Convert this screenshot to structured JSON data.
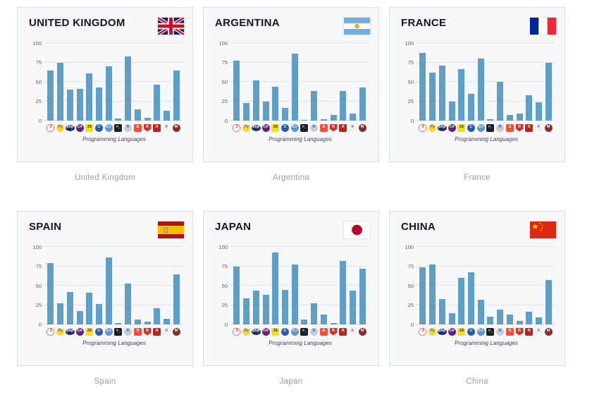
{
  "colors": {
    "bar": "#5f9ec6",
    "panel_background": "#f7f8f9",
    "panel_border": "#d9dbde",
    "gridline": "#e1e2e4",
    "title_text": "#15181c",
    "caption_text": "#9aa0a6"
  },
  "languages": [
    {
      "id": "java",
      "label": "J",
      "bg": "#ffffff",
      "fg": "#d9222a",
      "shape": "round",
      "border": "#d9222a"
    },
    {
      "id": "python",
      "label": "Py",
      "bg": "#ffd43b",
      "fg": "#306998",
      "shape": "round"
    },
    {
      "id": "php",
      "label": "php",
      "bg": "#232c69",
      "fg": "#ffffff",
      "shape": "oval"
    },
    {
      "id": "csharp",
      "label": "C#",
      "bg": "#68217a",
      "fg": "#ffffff",
      "shape": "round"
    },
    {
      "id": "javascript",
      "label": "JS",
      "bg": "#f7df1e",
      "fg": "#222222",
      "shape": "square"
    },
    {
      "id": "c",
      "label": "C",
      "bg": "#2a5aa8",
      "fg": "#ffffff",
      "shape": "round"
    },
    {
      "id": "cpp",
      "label": "C+",
      "bg": "#6295cb",
      "fg": "#ffffff",
      "shape": "round"
    },
    {
      "id": "shell",
      "label": ">_",
      "bg": "#1d1f21",
      "fg": "#ffffff",
      "shape": "square"
    },
    {
      "id": "r",
      "label": "R",
      "bg": "#c9ccd0",
      "fg": "#276dc3",
      "shape": "round"
    },
    {
      "id": "swift",
      "label": "S",
      "bg": "#f05138",
      "fg": "#ffffff",
      "shape": "square"
    },
    {
      "id": "ruby",
      "label": "R",
      "bg": "#cc342d",
      "fg": "#ffffff",
      "shape": "shield"
    },
    {
      "id": "rust",
      "label": "R",
      "bg": "#b7251f",
      "fg": "#ffffff",
      "shape": "square"
    },
    {
      "id": "kotlin",
      "label": "K",
      "bg": "#f2f2f2",
      "fg": "#7f52ff",
      "shape": "square"
    },
    {
      "id": "matlab",
      "label": "M",
      "bg": "#8a2b2b",
      "fg": "#ffffff",
      "shape": "round"
    }
  ],
  "chart_data": [
    {
      "type": "bar",
      "title": "UNITED KINGDOM",
      "caption": "United Kingdom",
      "flag": "uk",
      "xlabel": "Programming Languages",
      "ylim": [
        0,
        100
      ],
      "yticks": [
        0,
        25,
        50,
        75,
        100
      ],
      "categories": [
        "java",
        "python",
        "php",
        "csharp",
        "javascript",
        "c",
        "cpp",
        "shell",
        "r",
        "swift",
        "ruby",
        "rust",
        "kotlin",
        "matlab"
      ],
      "values": [
        65,
        75,
        40,
        41,
        61,
        43,
        70,
        3,
        83,
        15,
        4,
        46,
        13,
        65
      ]
    },
    {
      "type": "bar",
      "title": "ARGENTINA",
      "caption": "Argentina",
      "flag": "argentina",
      "xlabel": "Programming Languages",
      "ylim": [
        0,
        100
      ],
      "yticks": [
        0,
        25,
        50,
        75,
        100
      ],
      "categories": [
        "java",
        "python",
        "php",
        "csharp",
        "javascript",
        "c",
        "cpp",
        "shell",
        "r",
        "swift",
        "ruby",
        "rust",
        "kotlin",
        "matlab"
      ],
      "values": [
        77,
        23,
        52,
        25,
        44,
        16,
        86,
        1,
        38,
        2,
        7,
        38,
        9,
        43
      ]
    },
    {
      "type": "bar",
      "title": "FRANCE",
      "caption": "France",
      "flag": "france",
      "xlabel": "Programming Languages",
      "ylim": [
        0,
        100
      ],
      "yticks": [
        0,
        25,
        50,
        75,
        100
      ],
      "categories": [
        "java",
        "python",
        "php",
        "csharp",
        "javascript",
        "c",
        "cpp",
        "shell",
        "r",
        "swift",
        "ruby",
        "rust",
        "kotlin",
        "matlab"
      ],
      "values": [
        87,
        62,
        71,
        25,
        66,
        35,
        80,
        2,
        50,
        7,
        9,
        33,
        24,
        75
      ]
    },
    {
      "type": "bar",
      "title": "SPAIN",
      "caption": "Spain",
      "flag": "spain",
      "xlabel": "Programming Languages",
      "ylim": [
        0,
        100
      ],
      "yticks": [
        0,
        25,
        50,
        75,
        100
      ],
      "categories": [
        "java",
        "python",
        "php",
        "csharp",
        "javascript",
        "c",
        "cpp",
        "shell",
        "r",
        "swift",
        "ruby",
        "rust",
        "kotlin",
        "matlab"
      ],
      "values": [
        79,
        27,
        42,
        17,
        41,
        26,
        86,
        2,
        53,
        6,
        4,
        21,
        7,
        65
      ]
    },
    {
      "type": "bar",
      "title": "JAPAN",
      "caption": "Japan",
      "flag": "japan",
      "xlabel": "Programming Languages",
      "ylim": [
        0,
        100
      ],
      "yticks": [
        0,
        25,
        50,
        75,
        100
      ],
      "categories": [
        "java",
        "python",
        "php",
        "csharp",
        "javascript",
        "c",
        "cpp",
        "shell",
        "r",
        "swift",
        "ruby",
        "rust",
        "kotlin",
        "matlab"
      ],
      "values": [
        75,
        34,
        44,
        38,
        93,
        45,
        77,
        6,
        27,
        13,
        2,
        82,
        44,
        72
      ]
    },
    {
      "type": "bar",
      "title": "CHINA",
      "caption": "China",
      "flag": "china",
      "xlabel": "Programming Languages",
      "ylim": [
        0,
        100
      ],
      "yticks": [
        0,
        25,
        50,
        75,
        100
      ],
      "categories": [
        "java",
        "python",
        "php",
        "csharp",
        "javascript",
        "c",
        "cpp",
        "shell",
        "r",
        "swift",
        "ruby",
        "rust",
        "kotlin",
        "matlab"
      ],
      "values": [
        74,
        77,
        33,
        15,
        60,
        67,
        32,
        10,
        19,
        13,
        5,
        16,
        9,
        57
      ]
    }
  ]
}
